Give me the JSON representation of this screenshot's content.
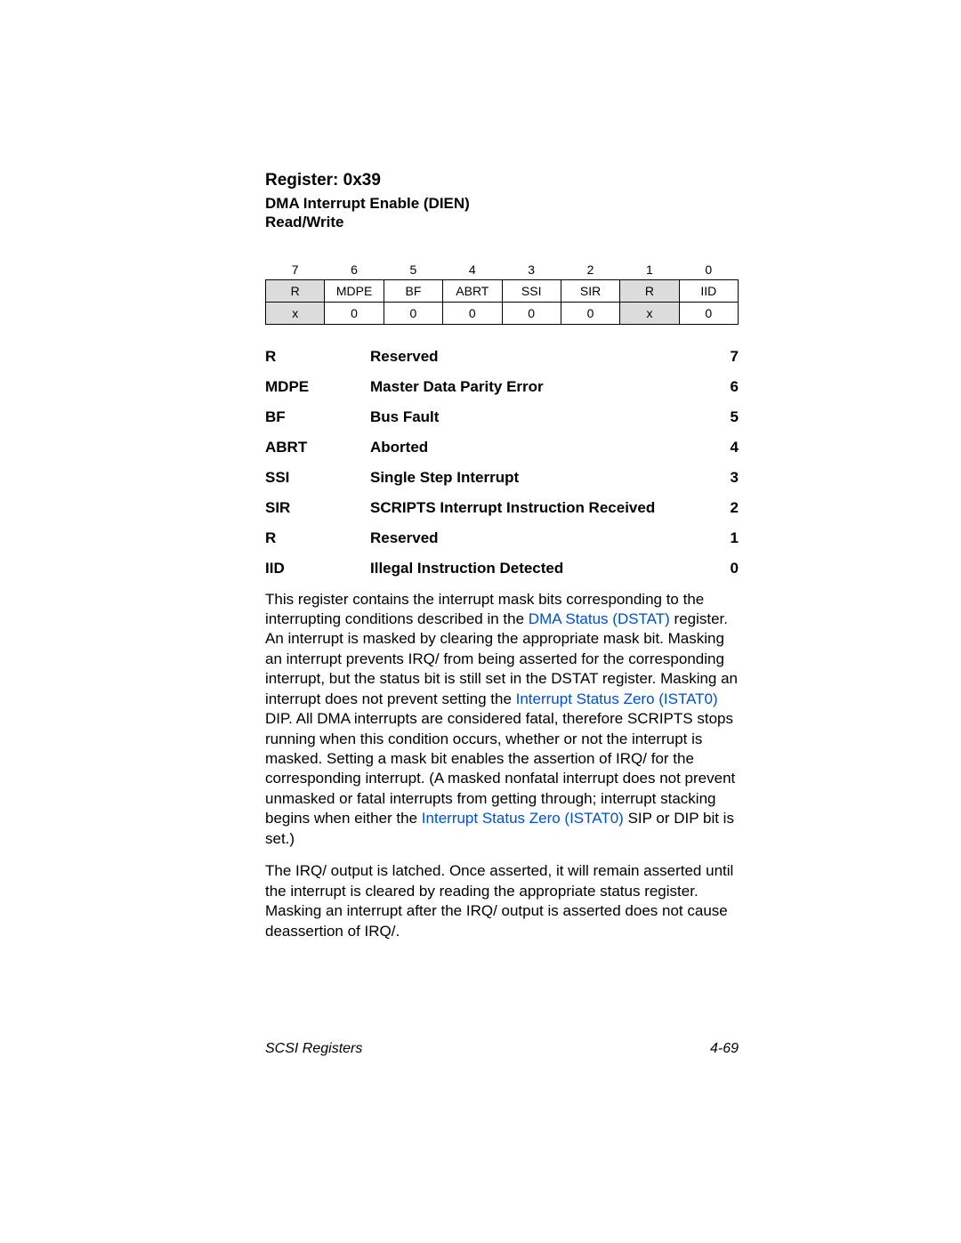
{
  "header": {
    "title": "Register:  0x39",
    "name": "DMA Interrupt Enable (DIEN)",
    "access": "Read/Write"
  },
  "bit_table": {
    "columns": [
      "7",
      "6",
      "5",
      "4",
      "3",
      "2",
      "1",
      "0"
    ],
    "names": [
      "R",
      "MDPE",
      "BF",
      "ABRT",
      "SSI",
      "SIR",
      "R",
      "IID"
    ],
    "resets": [
      "x",
      "0",
      "0",
      "0",
      "0",
      "0",
      "x",
      "0"
    ],
    "shaded_cols": [
      0,
      6
    ]
  },
  "fields": [
    {
      "abbr": "R",
      "desc": "Reserved",
      "bit": "7"
    },
    {
      "abbr": "MDPE",
      "desc": "Master Data Parity Error",
      "bit": "6"
    },
    {
      "abbr": "BF",
      "desc": "Bus Fault",
      "bit": "5"
    },
    {
      "abbr": "ABRT",
      "desc": "Aborted",
      "bit": "4"
    },
    {
      "abbr": "SSI",
      "desc": "Single Step Interrupt",
      "bit": "3"
    },
    {
      "abbr": "SIR",
      "desc": "SCRIPTS Interrupt Instruction Received",
      "bit": "2"
    },
    {
      "abbr": "R",
      "desc": "Reserved",
      "bit": "1"
    },
    {
      "abbr": "IID",
      "desc": "Illegal Instruction Detected",
      "bit": "0"
    }
  ],
  "paragraphs": {
    "p1a": "This register contains the interrupt mask bits corresponding to the interrupting conditions described in the ",
    "p1link1": "DMA Status (DSTAT)",
    "p1b": " register. An interrupt is masked by clearing the appropriate mask bit. Masking an interrupt prevents IRQ/ from being asserted for the corresponding interrupt, but the status bit is still set in the DSTAT register. Masking an interrupt does not prevent setting the ",
    "p1link2": "Interrupt Status Zero (ISTAT0)",
    "p1c": " DIP. All DMA interrupts are considered fatal, therefore SCRIPTS stops running when this condition occurs, whether or not the interrupt is masked. Setting a mask bit enables the assertion of IRQ/ for the corresponding interrupt. (A masked nonfatal interrupt does not prevent unmasked or fatal interrupts from getting through; interrupt stacking begins when either the ",
    "p1link3": "Interrupt Status Zero (ISTAT0)",
    "p1d": " SIP or DIP bit is set.)",
    "p2": "The IRQ/ output is latched. Once asserted, it will remain asserted until the interrupt is cleared by reading the appropriate status register. Masking an interrupt after the IRQ/ output is asserted does not cause deassertion of IRQ/."
  },
  "footer": {
    "left": "SCSI Registers",
    "right": "4-69"
  },
  "colors": {
    "link": "#0050c8",
    "shaded": "#dcdcdc",
    "text": "#000000",
    "bg": "#ffffff"
  }
}
